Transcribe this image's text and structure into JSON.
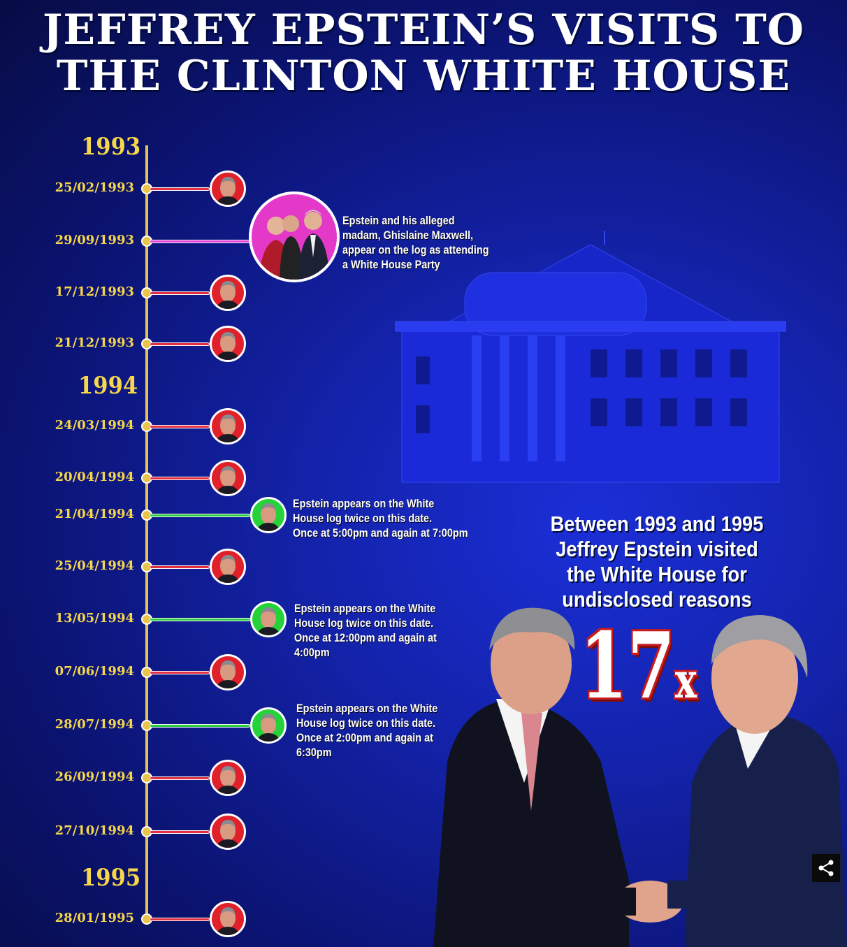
{
  "title_line1": "JEFFREY EPSTEIN’S VISITS TO",
  "title_line2": "THE CLINTON WHITE HOUSE",
  "years": [
    {
      "label": "1993"
    },
    {
      "label": "1994"
    },
    {
      "label": "1995"
    }
  ],
  "visits": [
    {
      "date": "25/02/1993",
      "type": "single"
    },
    {
      "date": "29/09/1993",
      "type": "party"
    },
    {
      "date": "17/12/1993",
      "type": "single"
    },
    {
      "date": "21/12/1993",
      "type": "single"
    },
    {
      "date": "24/03/1994",
      "type": "single"
    },
    {
      "date": "20/04/1994",
      "type": "single"
    },
    {
      "date": "21/04/1994",
      "type": "twice"
    },
    {
      "date": "25/04/1994",
      "type": "single"
    },
    {
      "date": "13/05/1994",
      "type": "twice"
    },
    {
      "date": "07/06/1994",
      "type": "single"
    },
    {
      "date": "28/07/1994",
      "type": "twice"
    },
    {
      "date": "26/09/1994",
      "type": "single"
    },
    {
      "date": "27/10/1994",
      "type": "single"
    },
    {
      "date": "28/01/1995",
      "type": "single"
    }
  ],
  "notes": {
    "party": [
      "Epstein and his alleged",
      "madam, Ghislaine Maxwell,",
      "appear on the log as attending",
      "a White House Party"
    ],
    "apr21": [
      "Epstein appears on the White",
      "House log twice on this date.",
      "Once at 5:00pm and again at 7:00pm"
    ],
    "may13": [
      "Epstein appears on the White",
      "House log twice on this date.",
      "Once at 12:00pm and again at",
      "4:00pm"
    ],
    "jul28": [
      "Epstein appears on the White",
      "House log twice on this date.",
      "Once at 2:00pm and again at",
      "6:30pm"
    ]
  },
  "summary": [
    "Between 1993 and 1995",
    "Jeffrey Epstein visited",
    "the White House for",
    "undisclosed reasons"
  ],
  "count_number": "17",
  "count_suffix": "x",
  "colors": {
    "background": "#1322a8",
    "axis": "#e8c44a",
    "single": "#e0202a",
    "twice": "#26d23a",
    "party": "#e438c8"
  },
  "icons": {
    "share": "share-icon"
  }
}
